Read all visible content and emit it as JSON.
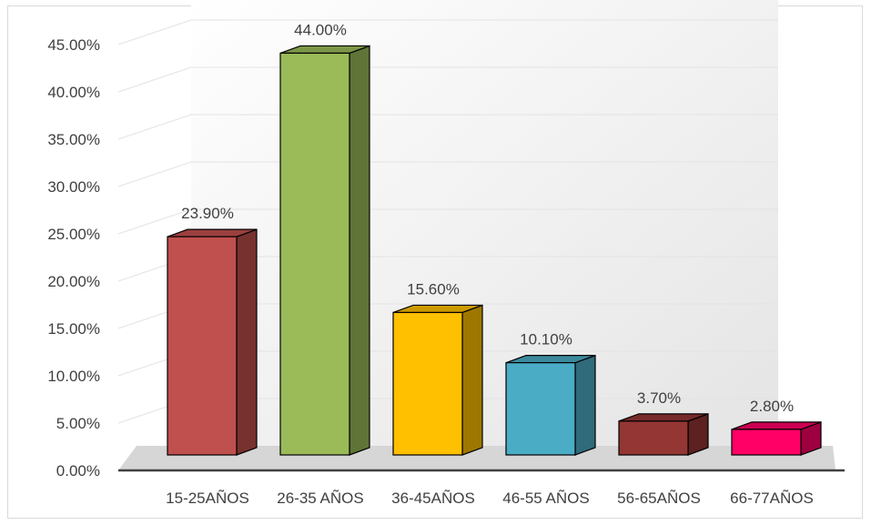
{
  "chart_data": {
    "type": "bar",
    "style": "3d-column",
    "categories": [
      "15-25AÑOS",
      "26-35 AÑOS",
      "36-45AÑOS",
      "46-55 AÑOS",
      "56-65AÑOS",
      "66-77AÑOS"
    ],
    "values": [
      23.9,
      44.0,
      15.6,
      10.1,
      3.7,
      2.8
    ],
    "data_labels": [
      "23.90%",
      "44.00%",
      "15.60%",
      "10.10%",
      "3.70%",
      "2.80%"
    ],
    "colors": [
      "#c0504d",
      "#9bbb59",
      "#ffc000",
      "#4bacc6",
      "#943634",
      "#ff0066"
    ],
    "title": "",
    "xlabel": "",
    "ylabel": "",
    "ylim": [
      0,
      45
    ],
    "yticks": [
      0,
      5,
      10,
      15,
      20,
      25,
      30,
      35,
      40,
      45
    ],
    "ytick_labels": [
      "0.00%",
      "5.00%",
      "10.00%",
      "15.00%",
      "20.00%",
      "25.00%",
      "30.00%",
      "35.00%",
      "40.00%",
      "45.00%"
    ],
    "grid": true,
    "legend": "none"
  }
}
